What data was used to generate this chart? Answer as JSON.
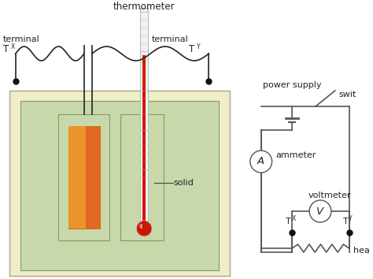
{
  "bg_color": "#ffffff",
  "outer_box_color": "#f0eec8",
  "inner_box_color": "#c8d8aa",
  "heater_color_main": "#e06820",
  "heater_color_left": "#f0a830",
  "therm_tube_color": "#f5f0f0",
  "therm_fill_color": "#cc1800",
  "therm_border_color": "#bbbbbb",
  "wire_color": "#222222",
  "circuit_color": "#555555",
  "text_color": "#222222",
  "labels": {
    "thermometer": "thermometer",
    "terminal_left": "terminal",
    "TX_left": "T",
    "TX_sub_left": "X",
    "terminal_right": "terminal",
    "TY_right": "T",
    "TY_sub_right": "Y",
    "solid": "solid",
    "power_supply": "power supply",
    "switch": "swit",
    "ammeter_label": "ammeter",
    "voltmeter_label": "voltmeter",
    "TX_node": "T",
    "TX_node_sub": "X",
    "TY_node": "T",
    "TY_node_sub": "Y",
    "heater_label": "hea"
  }
}
